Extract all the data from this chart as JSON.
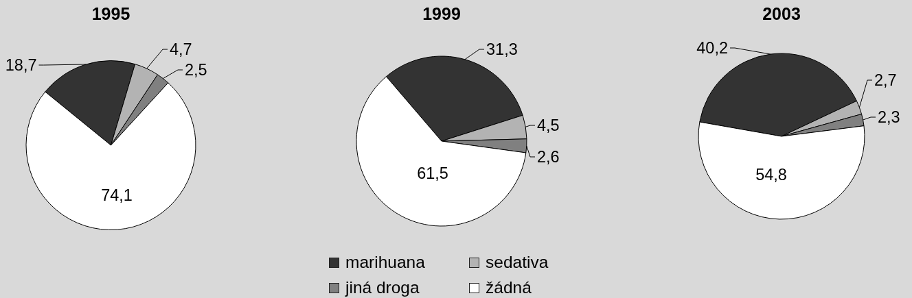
{
  "chart_data": [
    {
      "type": "pie",
      "title": "1995",
      "categories": [
        null,
        null,
        null,
        null
      ],
      "values": [
        18.7,
        4.7,
        2.5,
        74.1
      ],
      "colors": [
        "#333333",
        "#b3b3b3",
        "#808080",
        "#ffffff"
      ],
      "value_labels": [
        "18,7",
        "4,7",
        "2,5",
        "74,1"
      ]
    },
    {
      "type": "pie",
      "title": "1999",
      "categories": [
        "marihuana",
        "sedativa",
        "jiná droga",
        "žádná"
      ],
      "values": [
        31.3,
        4.5,
        2.6,
        61.5
      ],
      "colors": [
        "#333333",
        "#b3b3b3",
        "#808080",
        "#ffffff"
      ],
      "value_labels": [
        "31,3",
        "4,5",
        "2,6",
        "61,5"
      ],
      "legend": "bottom"
    },
    {
      "type": "pie",
      "title": "2003",
      "categories": [
        null,
        null,
        null,
        null
      ],
      "values": [
        40.2,
        2.7,
        2.3,
        54.8
      ],
      "colors": [
        "#333333",
        "#b3b3b3",
        "#808080",
        "#ffffff"
      ],
      "value_labels": [
        "40,2",
        "2,7",
        "2,3",
        "54,8"
      ]
    }
  ]
}
